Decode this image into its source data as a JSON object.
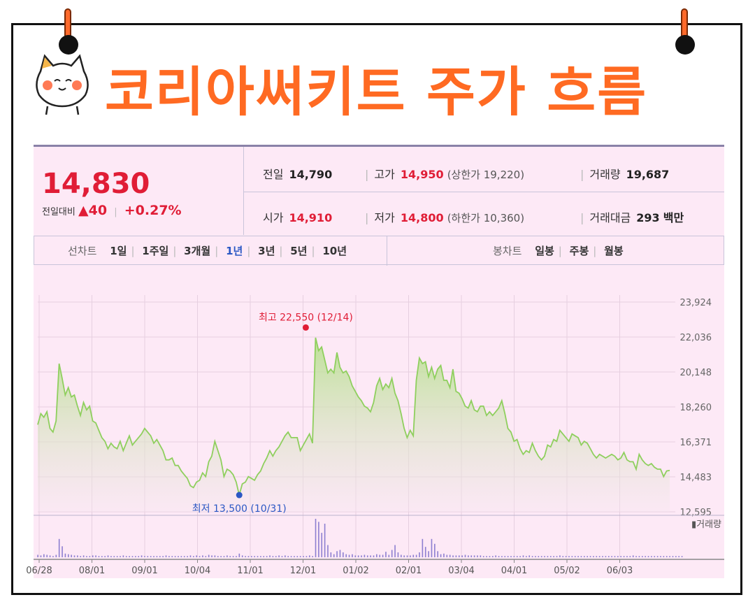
{
  "title": "코리아써키트 주가 흐름",
  "colors": {
    "accent": "#ff6a22",
    "up": "#e01d36",
    "down": "#2b58c4",
    "line": "#8fcf5e",
    "volume": "#8d7fd1"
  },
  "summary": {
    "price": "14,830",
    "change_label": "전일대비",
    "change_arrow": "▲",
    "change_value": "40",
    "change_pct": "+0.27%",
    "prev_label": "전일",
    "prev": "14,790",
    "high_label": "고가",
    "high": "14,950",
    "upper_limit": "(상한가 19,220)",
    "volume_label": "거래량",
    "volume": "19,687",
    "open_label": "시가",
    "open": "14,910",
    "low_label": "저가",
    "low": "14,800",
    "lower_limit": "(하한가 10,360)",
    "amount_label": "거래대금",
    "amount": "293",
    "amount_unit": "백만"
  },
  "tabs": {
    "line_label": "선차트",
    "periods": [
      "1일",
      "1주일",
      "3개월",
      "1년",
      "3년",
      "5년",
      "10년"
    ],
    "selected": "1년",
    "candle_label": "봉차트",
    "candles": [
      "일봉",
      "주봉",
      "월봉"
    ]
  },
  "chart_data": {
    "type": "area",
    "x_ticks": [
      "06/28",
      "08/01",
      "09/01",
      "10/04",
      "11/01",
      "12/01",
      "01/02",
      "02/01",
      "03/04",
      "04/01",
      "05/02",
      "06/03"
    ],
    "y_ticks": [
      23924,
      22036,
      20148,
      18260,
      16371,
      14483,
      12595
    ],
    "y_tick_labels": [
      "23,924",
      "22,036",
      "20,148",
      "18,260",
      "16,371",
      "14,483",
      "12,595"
    ],
    "ylim": [
      12595,
      23924
    ],
    "price_series": [
      17300,
      17900,
      17700,
      18000,
      17100,
      16900,
      17500,
      20600,
      19800,
      18900,
      19300,
      18800,
      18900,
      18300,
      17800,
      18500,
      18100,
      18300,
      17500,
      17400,
      17000,
      16600,
      16400,
      16000,
      16300,
      16100,
      16000,
      16400,
      15900,
      16300,
      16700,
      16200,
      16400,
      16600,
      16800,
      17100,
      16900,
      16700,
      16300,
      16500,
      16200,
      15900,
      15400,
      15400,
      15500,
      15100,
      15100,
      14800,
      14600,
      14400,
      14000,
      13900,
      14200,
      14300,
      14700,
      14500,
      15300,
      15600,
      16400,
      15900,
      15400,
      14500,
      14900,
      14800,
      14600,
      14200,
      13500,
      14100,
      14200,
      14500,
      14400,
      14300,
      14600,
      14800,
      15200,
      15500,
      15900,
      15600,
      15900,
      16100,
      16400,
      16700,
      16900,
      16600,
      16600,
      16600,
      15900,
      16200,
      16500,
      16800,
      16300,
      22000,
      21300,
      21500,
      20800,
      20100,
      20300,
      20100,
      21200,
      20400,
      20100,
      20200,
      19900,
      19400,
      19100,
      18800,
      18600,
      18300,
      18200,
      18000,
      18500,
      19400,
      19800,
      19200,
      19500,
      19300,
      19800,
      19000,
      18600,
      17900,
      17100,
      16600,
      17000,
      16700,
      19700,
      20900,
      20600,
      20700,
      19900,
      20400,
      19800,
      20300,
      20500,
      19700,
      19700,
      19300,
      20300,
      19100,
      19000,
      18700,
      18300,
      18200,
      18600,
      18100,
      18000,
      18300,
      18300,
      17800,
      18000,
      17800,
      18000,
      18200,
      18600,
      17900,
      17100,
      16900,
      16400,
      16500,
      16000,
      15700,
      15900,
      15800,
      16300,
      15900,
      15600,
      15400,
      15600,
      16200,
      16100,
      16500,
      16400,
      17000,
      16800,
      16600,
      16400,
      16800,
      16700,
      16600,
      16200,
      16400,
      16300,
      16000,
      15700,
      15500,
      15700,
      15600,
      15500,
      15600,
      15700,
      15600,
      15400,
      15500,
      15800,
      15400,
      15300,
      15300,
      14900,
      15700,
      15400,
      15200,
      15100,
      15200,
      15000,
      14900,
      14900,
      14500,
      14800,
      14830
    ],
    "volume_series": [
      4,
      3,
      5,
      4,
      3,
      2,
      4,
      30,
      18,
      6,
      5,
      4,
      3,
      3,
      2,
      3,
      2,
      2,
      3,
      3,
      2,
      2,
      2,
      3,
      2,
      2,
      2,
      2,
      3,
      2,
      2,
      2,
      2,
      2,
      3,
      2,
      2,
      2,
      2,
      2,
      2,
      2,
      3,
      2,
      2,
      2,
      2,
      2,
      2,
      2,
      3,
      2,
      3,
      2,
      3,
      2,
      4,
      3,
      3,
      2,
      2,
      2,
      3,
      2,
      2,
      2,
      6,
      3,
      2,
      2,
      2,
      2,
      2,
      2,
      2,
      2,
      3,
      2,
      2,
      3,
      2,
      3,
      2,
      2,
      2,
      2,
      2,
      2,
      2,
      3,
      2,
      63,
      58,
      40,
      55,
      20,
      8,
      5,
      10,
      12,
      8,
      5,
      4,
      5,
      3,
      3,
      3,
      4,
      3,
      3,
      3,
      5,
      4,
      4,
      9,
      4,
      12,
      20,
      8,
      4,
      3,
      3,
      3,
      4,
      4,
      8,
      30,
      17,
      10,
      30,
      22,
      10,
      5,
      6,
      4,
      4,
      3,
      3,
      3,
      3,
      4,
      3,
      3,
      3,
      3,
      3,
      2,
      2,
      2,
      2,
      3,
      2,
      2,
      2,
      2,
      2,
      2,
      2,
      2,
      3,
      2,
      3,
      2,
      2,
      2,
      2,
      2,
      2,
      2,
      2,
      2,
      3,
      2,
      2,
      2,
      2,
      2,
      2,
      2,
      2,
      2,
      2,
      2,
      2,
      2,
      2,
      2,
      2,
      2,
      2,
      2,
      2,
      2,
      2,
      2,
      3,
      2,
      2,
      2,
      2,
      2,
      2,
      2,
      2,
      2,
      2,
      2,
      2,
      2,
      2,
      2,
      2
    ],
    "high_marker": {
      "text": "최고 22,550 (12/14)",
      "value": 22550
    },
    "low_marker": {
      "text": "최저 13,500 (10/31)",
      "value": 13500
    },
    "volume_legend": "거래량"
  }
}
